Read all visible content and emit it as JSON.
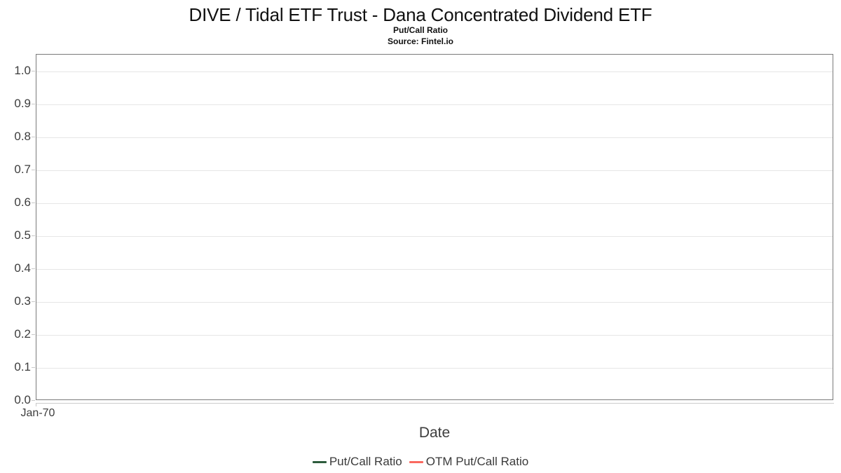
{
  "chart_data": {
    "type": "line",
    "title": "DIVE / Tidal ETF Trust - Dana Concentrated Dividend ETF",
    "subtitle": "Put/Call Ratio",
    "source": "Source: Fintel.io",
    "xlabel": "Date",
    "ylabel": "",
    "ylim": [
      0.0,
      1.05
    ],
    "y_ticks": [
      0.0,
      0.1,
      0.2,
      0.3,
      0.4,
      0.5,
      0.6,
      0.7,
      0.8,
      0.9,
      1.0
    ],
    "x_tick_labels": [
      "Jan-70"
    ],
    "grid": "horizontal-only",
    "legend_position": "bottom-center",
    "plot_border_color": "#7a7a7a",
    "gridline_color": "#e6e6e6",
    "series": [
      {
        "name": "Put/Call Ratio",
        "color": "#2d5c3c",
        "x": [],
        "values": []
      },
      {
        "name": "OTM Put/Call Ratio",
        "color": "#fa695f",
        "x": [],
        "values": []
      }
    ]
  }
}
